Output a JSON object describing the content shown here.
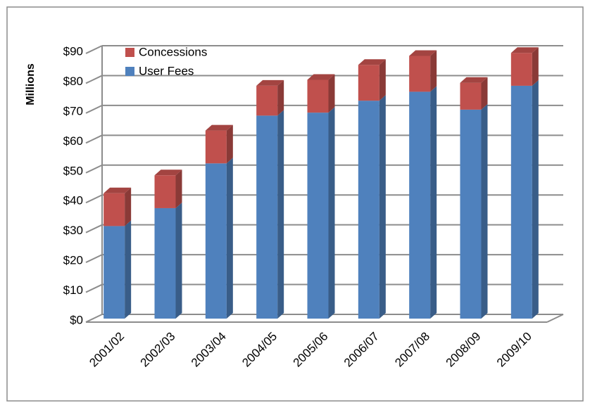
{
  "chart_data": {
    "type": "bar",
    "stacked": true,
    "y_label": "Millions",
    "categories": [
      "2001/02",
      "2002/03",
      "2003/04",
      "2004/05",
      "2005/06",
      "2006/07",
      "2007/08",
      "2008/09",
      "2009/10"
    ],
    "series": [
      {
        "name": "User Fees",
        "color": "#4f81bd",
        "values": [
          31,
          37,
          52,
          68,
          69,
          73,
          76,
          70,
          78
        ]
      },
      {
        "name": "Concessions",
        "color": "#c0504d",
        "values": [
          11,
          11,
          11,
          10,
          11,
          12,
          12,
          9,
          11
        ]
      }
    ],
    "ylim": [
      0,
      90
    ],
    "yticks": [
      {
        "value": 0,
        "label": "$0"
      },
      {
        "value": 10,
        "label": "$10"
      },
      {
        "value": 20,
        "label": "$20"
      },
      {
        "value": 30,
        "label": "$30"
      },
      {
        "value": 40,
        "label": "$40"
      },
      {
        "value": 50,
        "label": "$50"
      },
      {
        "value": 60,
        "label": "$60"
      },
      {
        "value": 70,
        "label": "$70"
      },
      {
        "value": 80,
        "label": "$80"
      },
      {
        "value": 90,
        "label": "$90"
      }
    ],
    "grid": true,
    "legend": "upper left"
  }
}
